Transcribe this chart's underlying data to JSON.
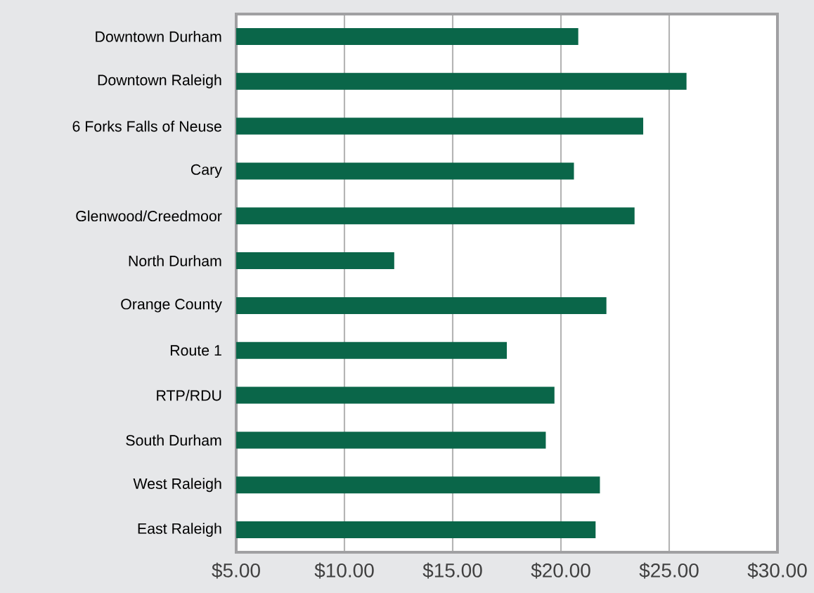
{
  "chart_data": {
    "type": "bar",
    "orientation": "horizontal",
    "categories": [
      "Downtown Durham",
      "Downtown Raleigh",
      "6 Forks Falls of Neuse",
      "Cary",
      "Glenwood/Creedmoor",
      "North Durham",
      "Orange County",
      "Route 1",
      "RTP/RDU",
      "South Durham",
      "West Raleigh",
      "East Raleigh"
    ],
    "values": [
      20.8,
      25.8,
      23.8,
      20.6,
      23.4,
      12.3,
      22.1,
      17.5,
      19.7,
      19.3,
      21.8,
      21.6
    ],
    "color": "#0a6649",
    "xlim": [
      5,
      30
    ],
    "xticks": [
      {
        "value": 5,
        "label": "$5.00"
      },
      {
        "value": 10,
        "label": "$10.00"
      },
      {
        "value": 15,
        "label": "$15.00"
      },
      {
        "value": 20,
        "label": "$20.00"
      },
      {
        "value": 25,
        "label": "$25.00"
      },
      {
        "value": 30,
        "label": "$30.00"
      }
    ],
    "grid": "x"
  }
}
